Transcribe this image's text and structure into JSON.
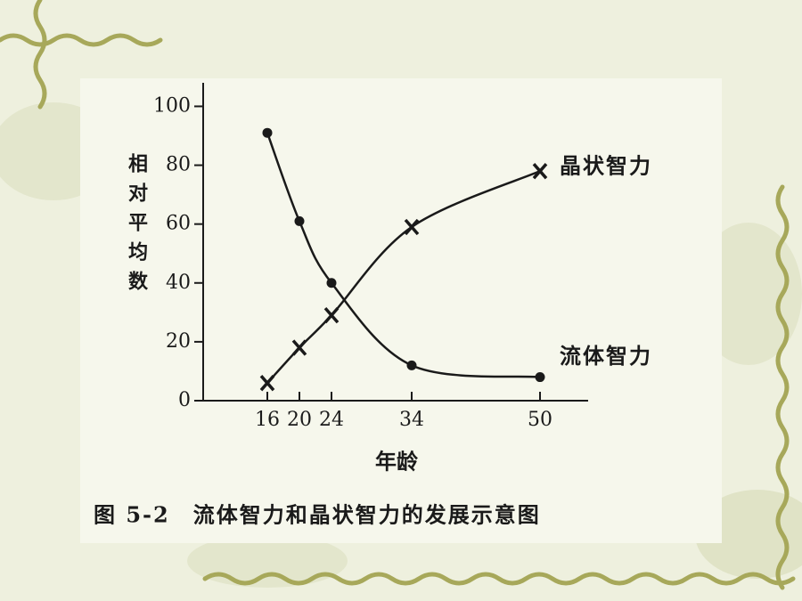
{
  "chart_data": {
    "type": "line",
    "x": [
      16,
      20,
      24,
      34,
      50
    ],
    "xlim": [
      8,
      56
    ],
    "xticks": [
      16,
      20,
      24,
      34,
      50
    ],
    "ylim": [
      0,
      108
    ],
    "yticks": [
      0,
      20,
      40,
      60,
      80,
      100
    ],
    "ylabel": "相对平均数",
    "xlabel": "年龄",
    "caption": "图 5-2　流体智力和晶状智力的发展示意图",
    "series": [
      {
        "name": "晶状智力",
        "color": "#1a1a1a",
        "marker": "x",
        "values": [
          6,
          18,
          29,
          59,
          78
        ]
      },
      {
        "name": "流体智力",
        "color": "#1a1a1a",
        "marker": "o",
        "values": [
          91,
          61,
          40,
          12,
          8
        ]
      }
    ]
  }
}
